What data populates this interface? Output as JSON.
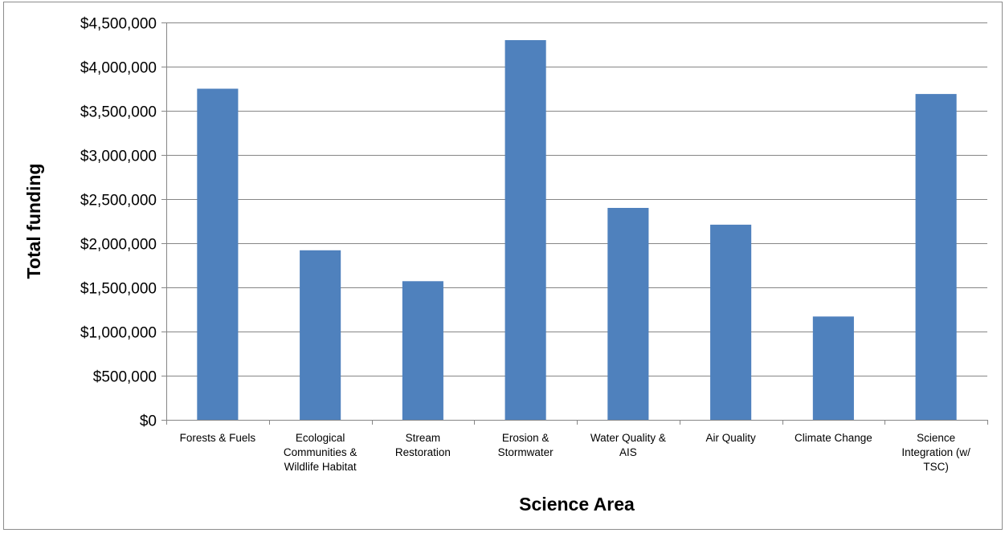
{
  "chart_data": {
    "type": "bar",
    "title": "",
    "xlabel": "Science Area",
    "ylabel": "Total funding",
    "categories": [
      [
        "Forests & Fuels"
      ],
      [
        "Ecological",
        "Communities &",
        "Wildlife Habitat"
      ],
      [
        "Stream",
        "Restoration"
      ],
      [
        "Erosion &",
        "Stormwater"
      ],
      [
        "Water Quality &",
        "AIS"
      ],
      [
        "Air Quality"
      ],
      [
        "Climate Change"
      ],
      [
        "Science",
        "Integration (w/",
        "TSC)"
      ]
    ],
    "values": [
      3750000,
      1920000,
      1570000,
      4300000,
      2400000,
      2210000,
      1170000,
      3690000
    ],
    "ylim": [
      0,
      4500000
    ],
    "yticks": [
      0,
      500000,
      1000000,
      1500000,
      2000000,
      2500000,
      3000000,
      3500000,
      4000000,
      4500000
    ],
    "ytick_labels": [
      "$0",
      "$500,000",
      "$1,000,000",
      "$1,500,000",
      "$2,000,000",
      "$2,500,000",
      "$3,000,000",
      "$3,500,000",
      "$4,000,000",
      "$4,500,000"
    ],
    "grid": true,
    "legend": "none",
    "bar_color": "#4f81bd",
    "grid_color": "#868686"
  }
}
